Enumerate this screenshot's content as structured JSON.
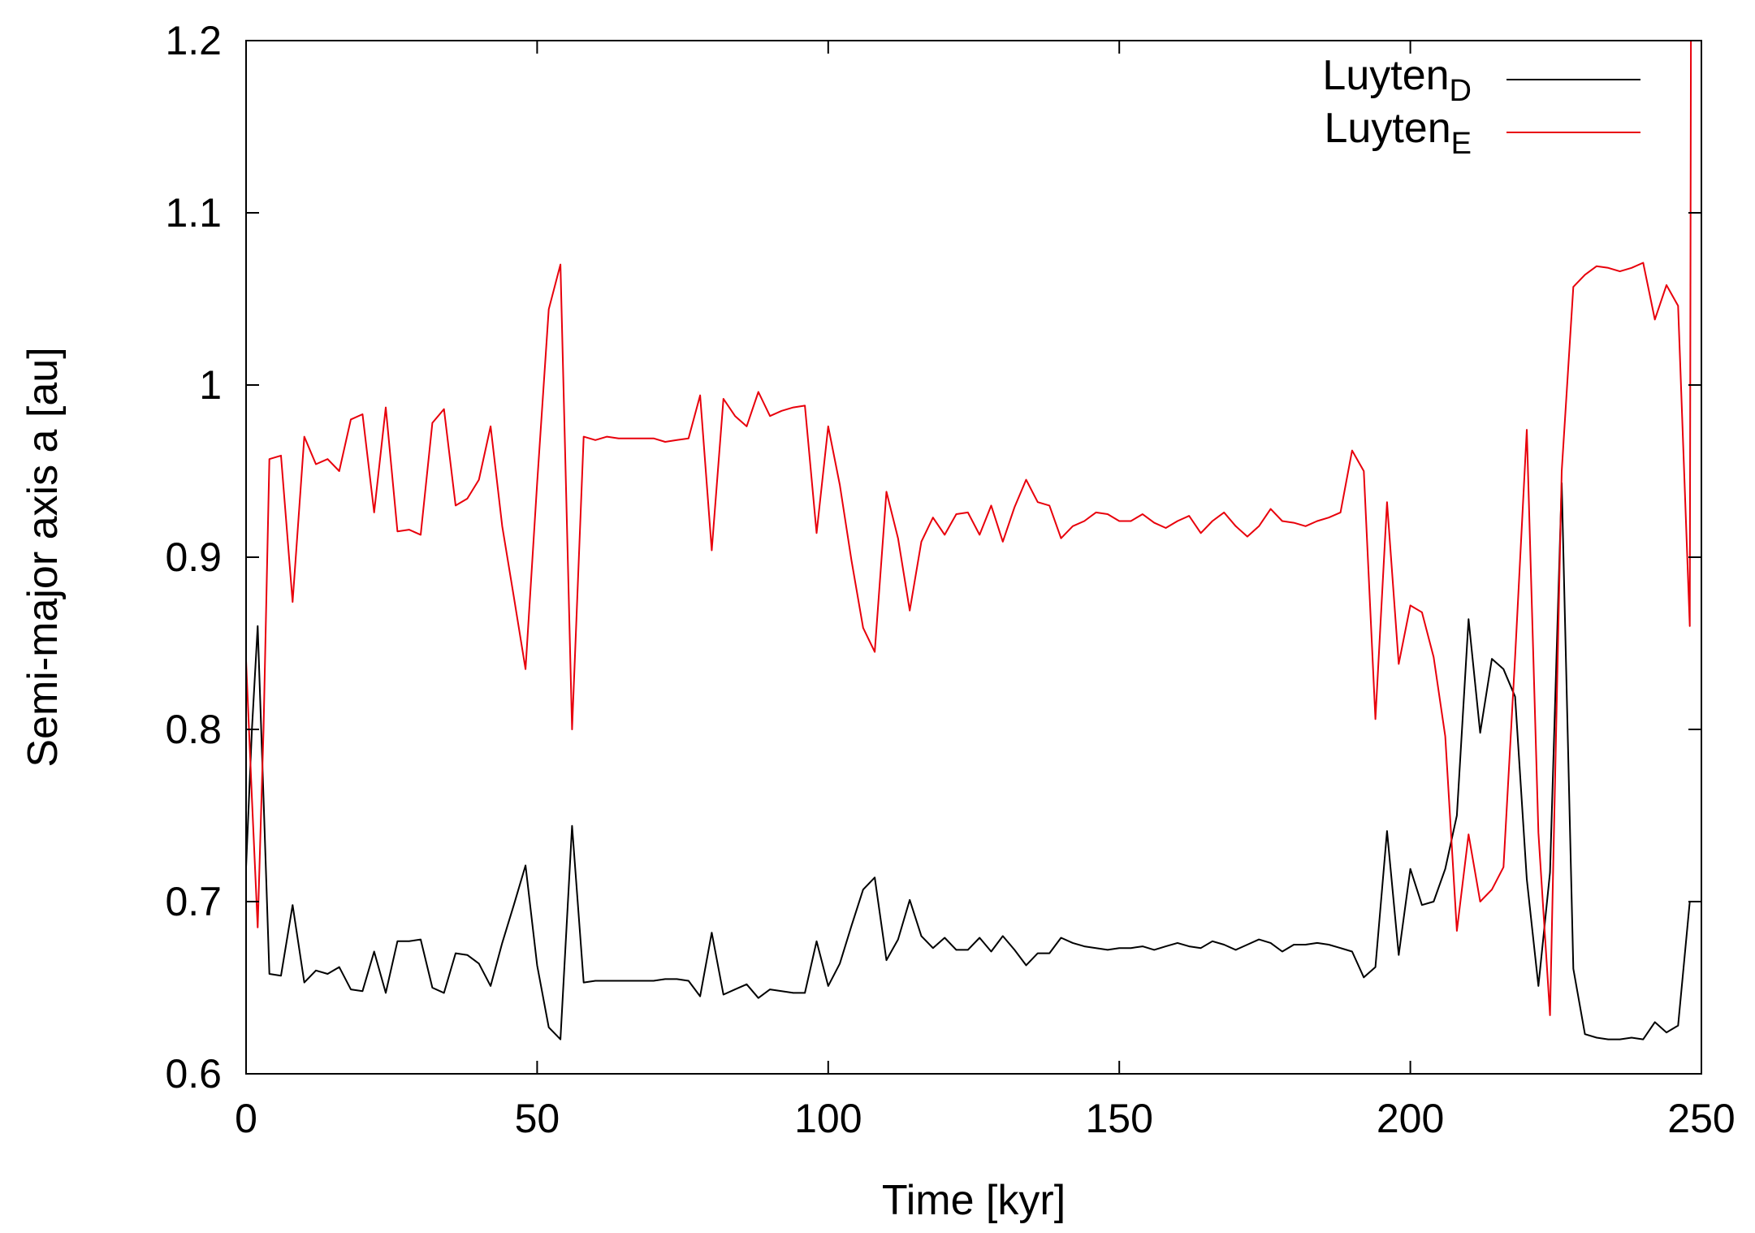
{
  "chart_data": {
    "type": "line",
    "xlabel": "Time [kyr]",
    "ylabel": "Semi-major axis a [au]",
    "xlim": [
      0,
      250
    ],
    "ylim": [
      0.6,
      1.2
    ],
    "xticks": [
      0,
      50,
      100,
      150,
      200,
      250
    ],
    "xtick_labels": [
      "0",
      "50",
      "100",
      "150",
      "200",
      "250"
    ],
    "yticks": [
      0.6,
      0.7,
      0.8,
      0.9,
      1.0,
      1.1,
      1.2
    ],
    "ytick_labels": [
      "0.6",
      "0.7",
      "0.8",
      "0.9",
      "1",
      "1.1",
      "1.2"
    ],
    "grid": false,
    "legend_position": "top-right",
    "series": [
      {
        "name": "Luyten",
        "subscript": "D",
        "color": "#000000",
        "x": [
          0,
          1,
          2,
          3,
          4,
          6,
          8,
          10,
          12,
          14,
          16,
          18,
          20,
          22,
          24,
          26,
          28,
          30,
          32,
          34,
          36,
          38,
          40,
          42,
          44,
          46,
          48,
          50,
          52,
          54,
          56,
          58,
          60,
          62,
          64,
          66,
          68,
          70,
          72,
          74,
          76,
          78,
          80,
          82,
          84,
          86,
          88,
          90,
          92,
          94,
          96,
          98,
          100,
          102,
          104,
          106,
          108,
          110,
          112,
          114,
          116,
          118,
          120,
          122,
          124,
          126,
          128,
          130,
          132,
          134,
          136,
          138,
          140,
          142,
          144,
          146,
          148,
          150,
          152,
          154,
          156,
          158,
          160,
          162,
          164,
          166,
          168,
          170,
          172,
          174,
          176,
          178,
          180,
          182,
          184,
          186,
          188,
          190,
          192,
          194,
          196,
          198,
          200,
          202,
          204,
          206,
          208,
          210,
          212,
          214,
          216,
          218,
          220,
          222,
          224,
          226,
          228,
          230,
          232,
          234,
          236,
          238,
          240,
          242,
          244,
          246,
          248
        ],
        "y": [
          0.72,
          0.8,
          0.86,
          0.76,
          0.658,
          0.657,
          0.698,
          0.653,
          0.66,
          0.658,
          0.662,
          0.649,
          0.648,
          0.671,
          0.647,
          0.677,
          0.677,
          0.678,
          0.65,
          0.647,
          0.67,
          0.669,
          0.664,
          0.651,
          0.676,
          0.698,
          0.721,
          0.663,
          0.627,
          0.62,
          0.744,
          0.653,
          0.654,
          0.654,
          0.654,
          0.654,
          0.654,
          0.654,
          0.655,
          0.655,
          0.654,
          0.645,
          0.682,
          0.646,
          0.649,
          0.652,
          0.644,
          0.649,
          0.648,
          0.647,
          0.647,
          0.677,
          0.651,
          0.664,
          0.686,
          0.707,
          0.714,
          0.666,
          0.678,
          0.701,
          0.68,
          0.673,
          0.679,
          0.672,
          0.672,
          0.679,
          0.671,
          0.68,
          0.672,
          0.663,
          0.67,
          0.67,
          0.679,
          0.676,
          0.674,
          0.673,
          0.672,
          0.673,
          0.673,
          0.674,
          0.672,
          0.674,
          0.676,
          0.674,
          0.673,
          0.677,
          0.675,
          0.672,
          0.675,
          0.678,
          0.676,
          0.671,
          0.675,
          0.675,
          0.676,
          0.675,
          0.673,
          0.671,
          0.656,
          0.662,
          0.741,
          0.669,
          0.719,
          0.698,
          0.7,
          0.719,
          0.75,
          0.864,
          0.798,
          0.841,
          0.835,
          0.819,
          0.713,
          0.651,
          0.717,
          0.943,
          0.661,
          0.623,
          0.621,
          0.62,
          0.62,
          0.621,
          0.62,
          0.63,
          0.624,
          0.628,
          0.7
        ]
      },
      {
        "name": "Luyten",
        "subscript": "E",
        "color": "#e8000b",
        "x": [
          0,
          1,
          2,
          3,
          4,
          6,
          8,
          10,
          12,
          14,
          16,
          18,
          20,
          22,
          24,
          26,
          28,
          30,
          32,
          34,
          36,
          38,
          40,
          42,
          44,
          46,
          48,
          50,
          52,
          54,
          56,
          58,
          60,
          62,
          64,
          66,
          68,
          70,
          72,
          74,
          76,
          78,
          80,
          82,
          84,
          86,
          88,
          90,
          92,
          94,
          96,
          98,
          100,
          102,
          104,
          106,
          108,
          110,
          112,
          114,
          116,
          118,
          120,
          122,
          124,
          126,
          128,
          130,
          132,
          134,
          136,
          138,
          140,
          142,
          144,
          146,
          148,
          150,
          152,
          154,
          156,
          158,
          160,
          162,
          164,
          166,
          168,
          170,
          172,
          174,
          176,
          178,
          180,
          182,
          184,
          186,
          188,
          190,
          192,
          194,
          196,
          198,
          200,
          202,
          204,
          206,
          208,
          210,
          212,
          214,
          216,
          218,
          220,
          222,
          224,
          226,
          228,
          230,
          232,
          234,
          236,
          238,
          240,
          242,
          244,
          246,
          248,
          248.2
        ],
        "y": [
          0.84,
          0.76,
          0.685,
          0.8,
          0.957,
          0.959,
          0.874,
          0.97,
          0.954,
          0.957,
          0.95,
          0.98,
          0.983,
          0.926,
          0.987,
          0.915,
          0.916,
          0.913,
          0.978,
          0.986,
          0.93,
          0.934,
          0.945,
          0.976,
          0.918,
          0.877,
          0.835,
          0.943,
          1.044,
          1.07,
          0.8,
          0.97,
          0.968,
          0.97,
          0.969,
          0.969,
          0.969,
          0.969,
          0.967,
          0.968,
          0.969,
          0.994,
          0.904,
          0.992,
          0.982,
          0.976,
          0.996,
          0.982,
          0.985,
          0.987,
          0.988,
          0.914,
          0.976,
          0.942,
          0.898,
          0.859,
          0.845,
          0.938,
          0.911,
          0.869,
          0.909,
          0.923,
          0.913,
          0.925,
          0.926,
          0.913,
          0.93,
          0.909,
          0.929,
          0.945,
          0.932,
          0.93,
          0.911,
          0.918,
          0.921,
          0.926,
          0.925,
          0.921,
          0.921,
          0.925,
          0.92,
          0.917,
          0.921,
          0.924,
          0.914,
          0.921,
          0.926,
          0.918,
          0.912,
          0.918,
          0.928,
          0.921,
          0.92,
          0.918,
          0.921,
          0.923,
          0.926,
          0.962,
          0.95,
          0.806,
          0.932,
          0.838,
          0.872,
          0.868,
          0.842,
          0.796,
          0.683,
          0.739,
          0.7,
          0.707,
          0.72,
          0.842,
          0.974,
          0.74,
          0.634,
          0.95,
          1.057,
          1.064,
          1.069,
          1.068,
          1.066,
          1.068,
          1.071,
          1.038,
          1.058,
          1.046,
          0.86,
          1.2
        ]
      }
    ]
  }
}
